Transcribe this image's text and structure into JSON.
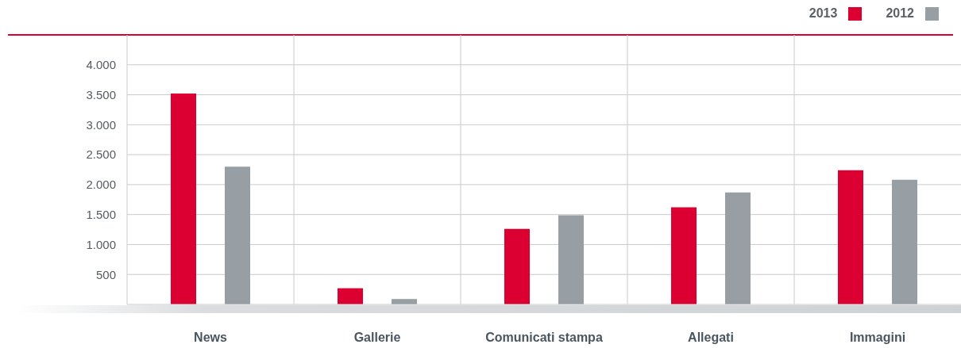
{
  "chart_data": {
    "type": "bar",
    "categories": [
      "News",
      "Gallerie",
      "Comunicati stampa",
      "Allegati",
      "Immagini"
    ],
    "series": [
      {
        "name": "2013",
        "color": "#dc0032",
        "values": [
          3520,
          270,
          1260,
          1620,
          2240
        ]
      },
      {
        "name": "2012",
        "color": "#979fa4",
        "values": [
          2300,
          90,
          1490,
          1870,
          2080
        ]
      }
    ],
    "ylim": [
      0,
      4500
    ],
    "yticks": [
      {
        "value": 0,
        "label": null
      },
      500,
      {
        "value": 1000,
        "label": "1.000"
      },
      {
        "value": 1500,
        "label": "1.500"
      },
      {
        "value": 2000,
        "label": "2.000"
      },
      {
        "value": 2500,
        "label": "2.500"
      },
      {
        "value": 3000,
        "label": "3.000"
      },
      {
        "value": 3500,
        "label": "3.500"
      },
      {
        "value": 4000,
        "label": "4.000"
      }
    ],
    "grid": true,
    "legend": "top right"
  }
}
